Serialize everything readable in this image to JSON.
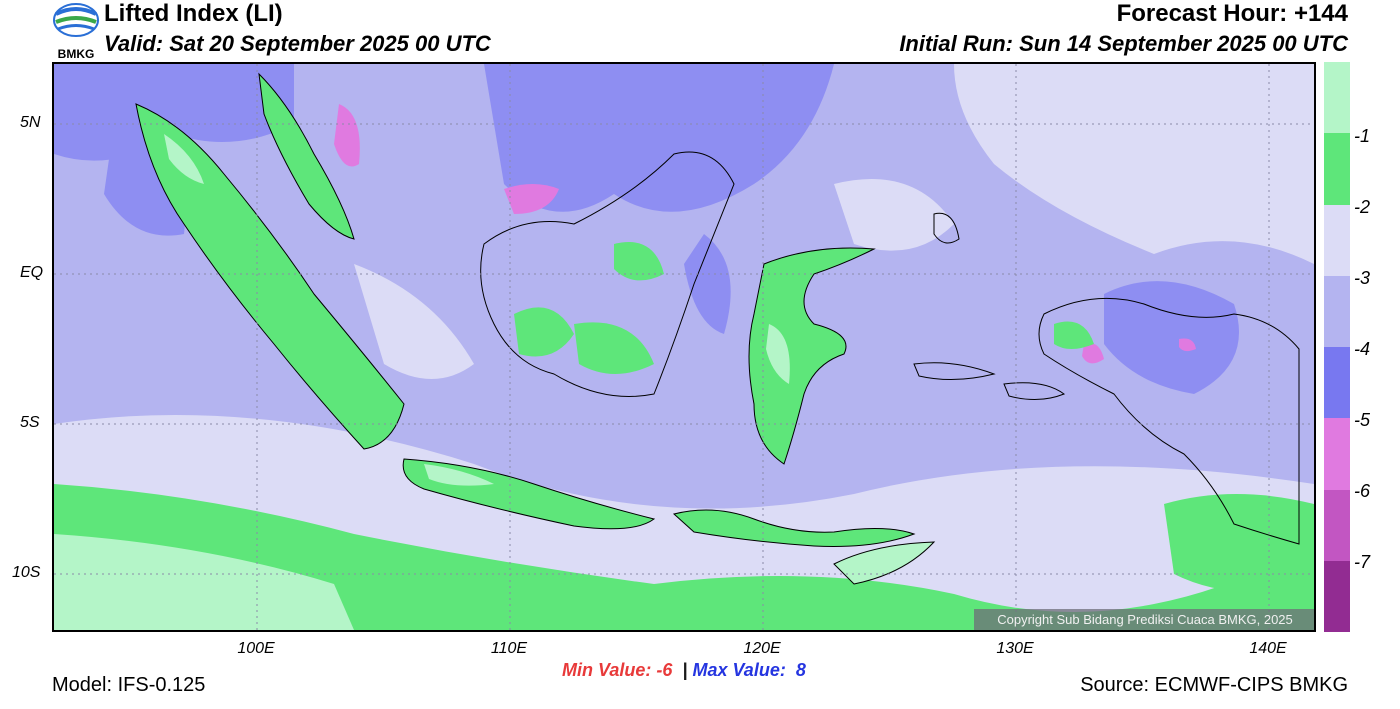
{
  "header": {
    "title": "Lifted Index (LI)",
    "valid": "Valid: Sat 20 September 2025 00 UTC",
    "forecast_hour": "Forecast Hour: +144",
    "initial_run": "Initial Run: Sun 14 September 2025 00 UTC"
  },
  "logo": {
    "text": "BMKG"
  },
  "map": {
    "lat_labels": [
      "5N",
      "EQ",
      "5S",
      "10S"
    ],
    "lon_labels": [
      "100E",
      "110E",
      "120E",
      "130E",
      "140E"
    ],
    "copyright": "Copyright Sub Bidang Prediksi Cuaca BMKG, 2025"
  },
  "colorbar": {
    "labels": [
      "-1",
      "-2",
      "-3",
      "-4",
      "-5",
      "-6",
      "-7"
    ],
    "colors": [
      "#b4f5c8",
      "#5ee67a",
      "#dcdcf6",
      "#b4b4f0",
      "#7878f0",
      "#e07ae0",
      "#c256c2",
      "#922c92"
    ]
  },
  "stats": {
    "min_label": "Min Value:",
    "min_value": "-6",
    "separator": "|",
    "max_label": "Max Value:",
    "max_value": "8"
  },
  "footer": {
    "model": "Model: IFS-0.125",
    "source": "Source: ECMWF-CIPS BMKG"
  }
}
